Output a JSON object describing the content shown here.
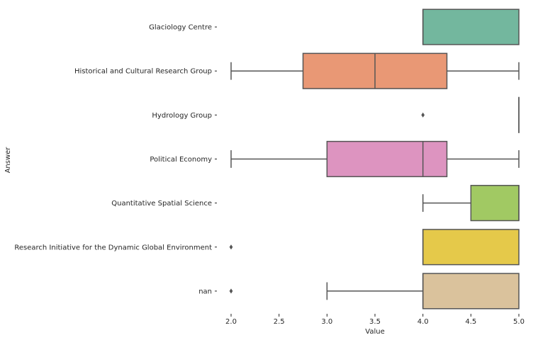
{
  "chart_data": {
    "type": "boxplot",
    "orientation": "horizontal",
    "title": "",
    "xlabel": "Value",
    "ylabel": "Answer",
    "xlim": [
      2.0,
      5.0
    ],
    "xticks": [
      2.0,
      2.5,
      3.0,
      3.5,
      4.0,
      4.5,
      5.0
    ],
    "xtick_labels": [
      "2.0",
      "2.5",
      "3.0",
      "3.5",
      "4.0",
      "4.5",
      "5.0"
    ],
    "grid": false,
    "categories": [
      "Glaciology Centre",
      "Historical and Cultural Research Group",
      "Hydrology Group",
      "Political Economy",
      "Quantitative Spatial Science",
      "Research Initiative for the Dynamic Global Environment",
      "nan"
    ],
    "boxes": [
      {
        "q1": 4.0,
        "median": 4.0,
        "q3": 5.0,
        "whisker_low": 4.0,
        "whisker_high": 5.0,
        "fliers": [],
        "color": "#73b79e"
      },
      {
        "q1": 2.75,
        "median": 3.5,
        "q3": 4.25,
        "whisker_low": 2.0,
        "whisker_high": 5.0,
        "fliers": [],
        "color": "#e99875"
      },
      {
        "q1": 5.0,
        "median": 5.0,
        "q3": 5.0,
        "whisker_low": 5.0,
        "whisker_high": 5.0,
        "fliers": [
          4.0
        ],
        "color": "#8da0cb"
      },
      {
        "q1": 3.0,
        "median": 4.0,
        "q3": 4.25,
        "whisker_low": 2.0,
        "whisker_high": 5.0,
        "fliers": [],
        "color": "#dd94c0"
      },
      {
        "q1": 4.5,
        "median": 5.0,
        "q3": 5.0,
        "whisker_low": 4.0,
        "whisker_high": 5.0,
        "fliers": [],
        "color": "#a1c963"
      },
      {
        "q1": 4.0,
        "median": 4.0,
        "q3": 5.0,
        "whisker_low": 4.0,
        "whisker_high": 5.0,
        "fliers": [
          2.0
        ],
        "color": "#e5c94a"
      },
      {
        "q1": 4.0,
        "median": 4.0,
        "q3": 5.0,
        "whisker_low": 3.0,
        "whisker_high": 5.0,
        "fliers": [
          2.0
        ],
        "color": "#dac29c"
      }
    ],
    "line_color": "#555555"
  }
}
